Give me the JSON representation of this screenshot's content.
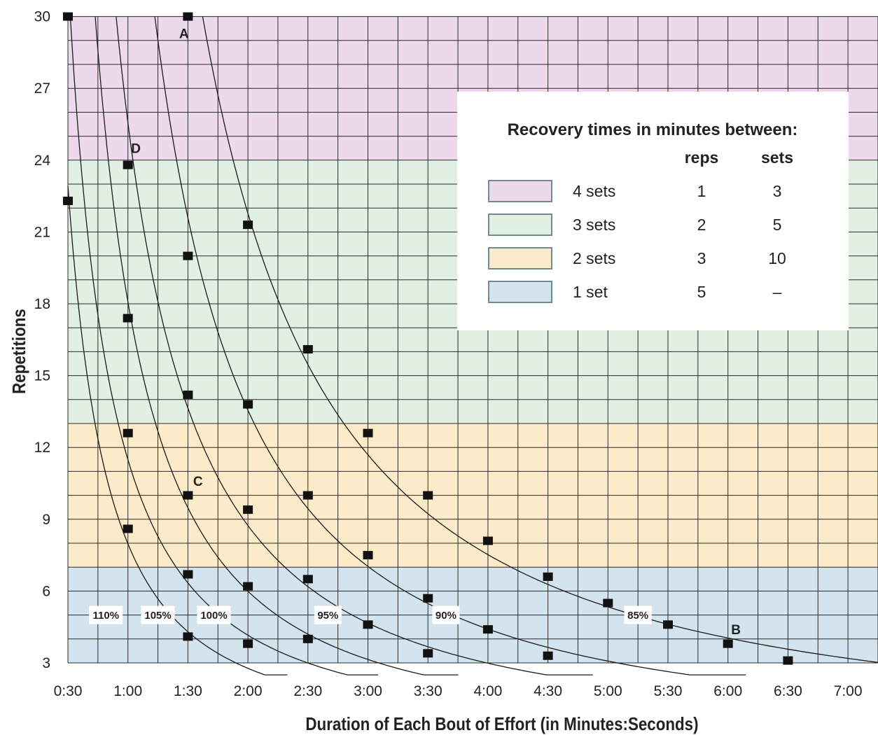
{
  "chart_data": {
    "type": "line",
    "xlabel": "Duration of Each Bout of Effort (in Minutes:Seconds)",
    "ylabel": "Repetitions",
    "x_unit": "seconds",
    "xlim": [
      30,
      450
    ],
    "ylim": [
      3,
      30
    ],
    "x_ticks": [
      {
        "value": 30,
        "label": "0:30"
      },
      {
        "value": 60,
        "label": "1:00"
      },
      {
        "value": 90,
        "label": "1:30"
      },
      {
        "value": 120,
        "label": "2:00"
      },
      {
        "value": 150,
        "label": "2:30"
      },
      {
        "value": 180,
        "label": "3:00"
      },
      {
        "value": 210,
        "label": "3:30"
      },
      {
        "value": 240,
        "label": "4:00"
      },
      {
        "value": 270,
        "label": "4:30"
      },
      {
        "value": 300,
        "label": "5:00"
      },
      {
        "value": 330,
        "label": "5:30"
      },
      {
        "value": 360,
        "label": "6:00"
      },
      {
        "value": 390,
        "label": "6:30"
      },
      {
        "value": 420,
        "label": "7:00"
      }
    ],
    "y_ticks": [
      3,
      6,
      9,
      12,
      15,
      18,
      21,
      24,
      27,
      30
    ],
    "grid": true,
    "bands": [
      {
        "name": "4 sets",
        "y0": 24,
        "y1": 30,
        "color": "#ecdaec"
      },
      {
        "name": "3 sets",
        "y0": 13,
        "y1": 24,
        "color": "#e2f0e4"
      },
      {
        "name": "2 sets",
        "y0": 7,
        "y1": 13,
        "color": "#fcebc8"
      },
      {
        "name": "1 set",
        "y0": 3,
        "y1": 7,
        "color": "#d4e4ef"
      }
    ],
    "series": [
      {
        "name": "110%",
        "label_x": 49,
        "label_y": 5,
        "points": [
          [
            30,
            22.3
          ],
          [
            60,
            8.6
          ],
          [
            90,
            4.1
          ]
        ]
      },
      {
        "name": "105%",
        "label_x": 75,
        "label_y": 5,
        "points": [
          [
            30,
            30
          ],
          [
            60,
            12.6
          ],
          [
            90,
            6.7
          ],
          [
            120,
            3.8
          ]
        ]
      },
      {
        "name": "100%",
        "label_x": 103,
        "label_y": 5,
        "points": [
          [
            60,
            17.4
          ],
          [
            90,
            10.0
          ],
          [
            120,
            6.2
          ],
          [
            150,
            4.0
          ]
        ]
      },
      {
        "name": "95%",
        "label_x": 160,
        "label_y": 5,
        "points": [
          [
            60,
            23.8
          ],
          [
            90,
            14.2
          ],
          [
            120,
            9.4
          ],
          [
            150,
            6.5
          ],
          [
            180,
            4.6
          ],
          [
            210,
            3.4
          ]
        ]
      },
      {
        "name": "90%",
        "label_x": 219,
        "label_y": 5,
        "points": [
          [
            90,
            20.0
          ],
          [
            120,
            13.8
          ],
          [
            150,
            10.0
          ],
          [
            180,
            7.5
          ],
          [
            210,
            5.7
          ],
          [
            240,
            4.4
          ],
          [
            270,
            3.3
          ]
        ]
      },
      {
        "name": "85%",
        "label_x": 315,
        "label_y": 5,
        "points": [
          [
            90,
            30
          ],
          [
            120,
            21.3
          ],
          [
            150,
            16.1
          ],
          [
            180,
            12.6
          ],
          [
            210,
            10.0
          ],
          [
            240,
            8.1
          ],
          [
            270,
            6.6
          ],
          [
            300,
            5.5
          ],
          [
            330,
            4.6
          ],
          [
            360,
            3.8
          ],
          [
            390,
            3.1
          ]
        ]
      }
    ],
    "annotations": [
      {
        "text": "A",
        "x": 88,
        "y": 29.3
      },
      {
        "text": "D",
        "x": 64,
        "y": 24.5
      },
      {
        "text": "C",
        "x": 95,
        "y": 10.6
      },
      {
        "text": "B",
        "x": 364,
        "y": 4.4
      }
    ],
    "legend": {
      "placement": "top-right",
      "title": "Recovery times in minutes between:",
      "columns": [
        "reps",
        "sets"
      ],
      "rows": [
        {
          "label": "4 sets",
          "reps": "1",
          "sets": "3",
          "color": "#ecdaec"
        },
        {
          "label": "3 sets",
          "reps": "2",
          "sets": "5",
          "color": "#e2f0e4"
        },
        {
          "label": "2 sets",
          "reps": "3",
          "sets": "10",
          "color": "#fcebc8"
        },
        {
          "label": "1 set",
          "reps": "5",
          "sets": "–",
          "color": "#d4e4ef"
        }
      ]
    }
  }
}
